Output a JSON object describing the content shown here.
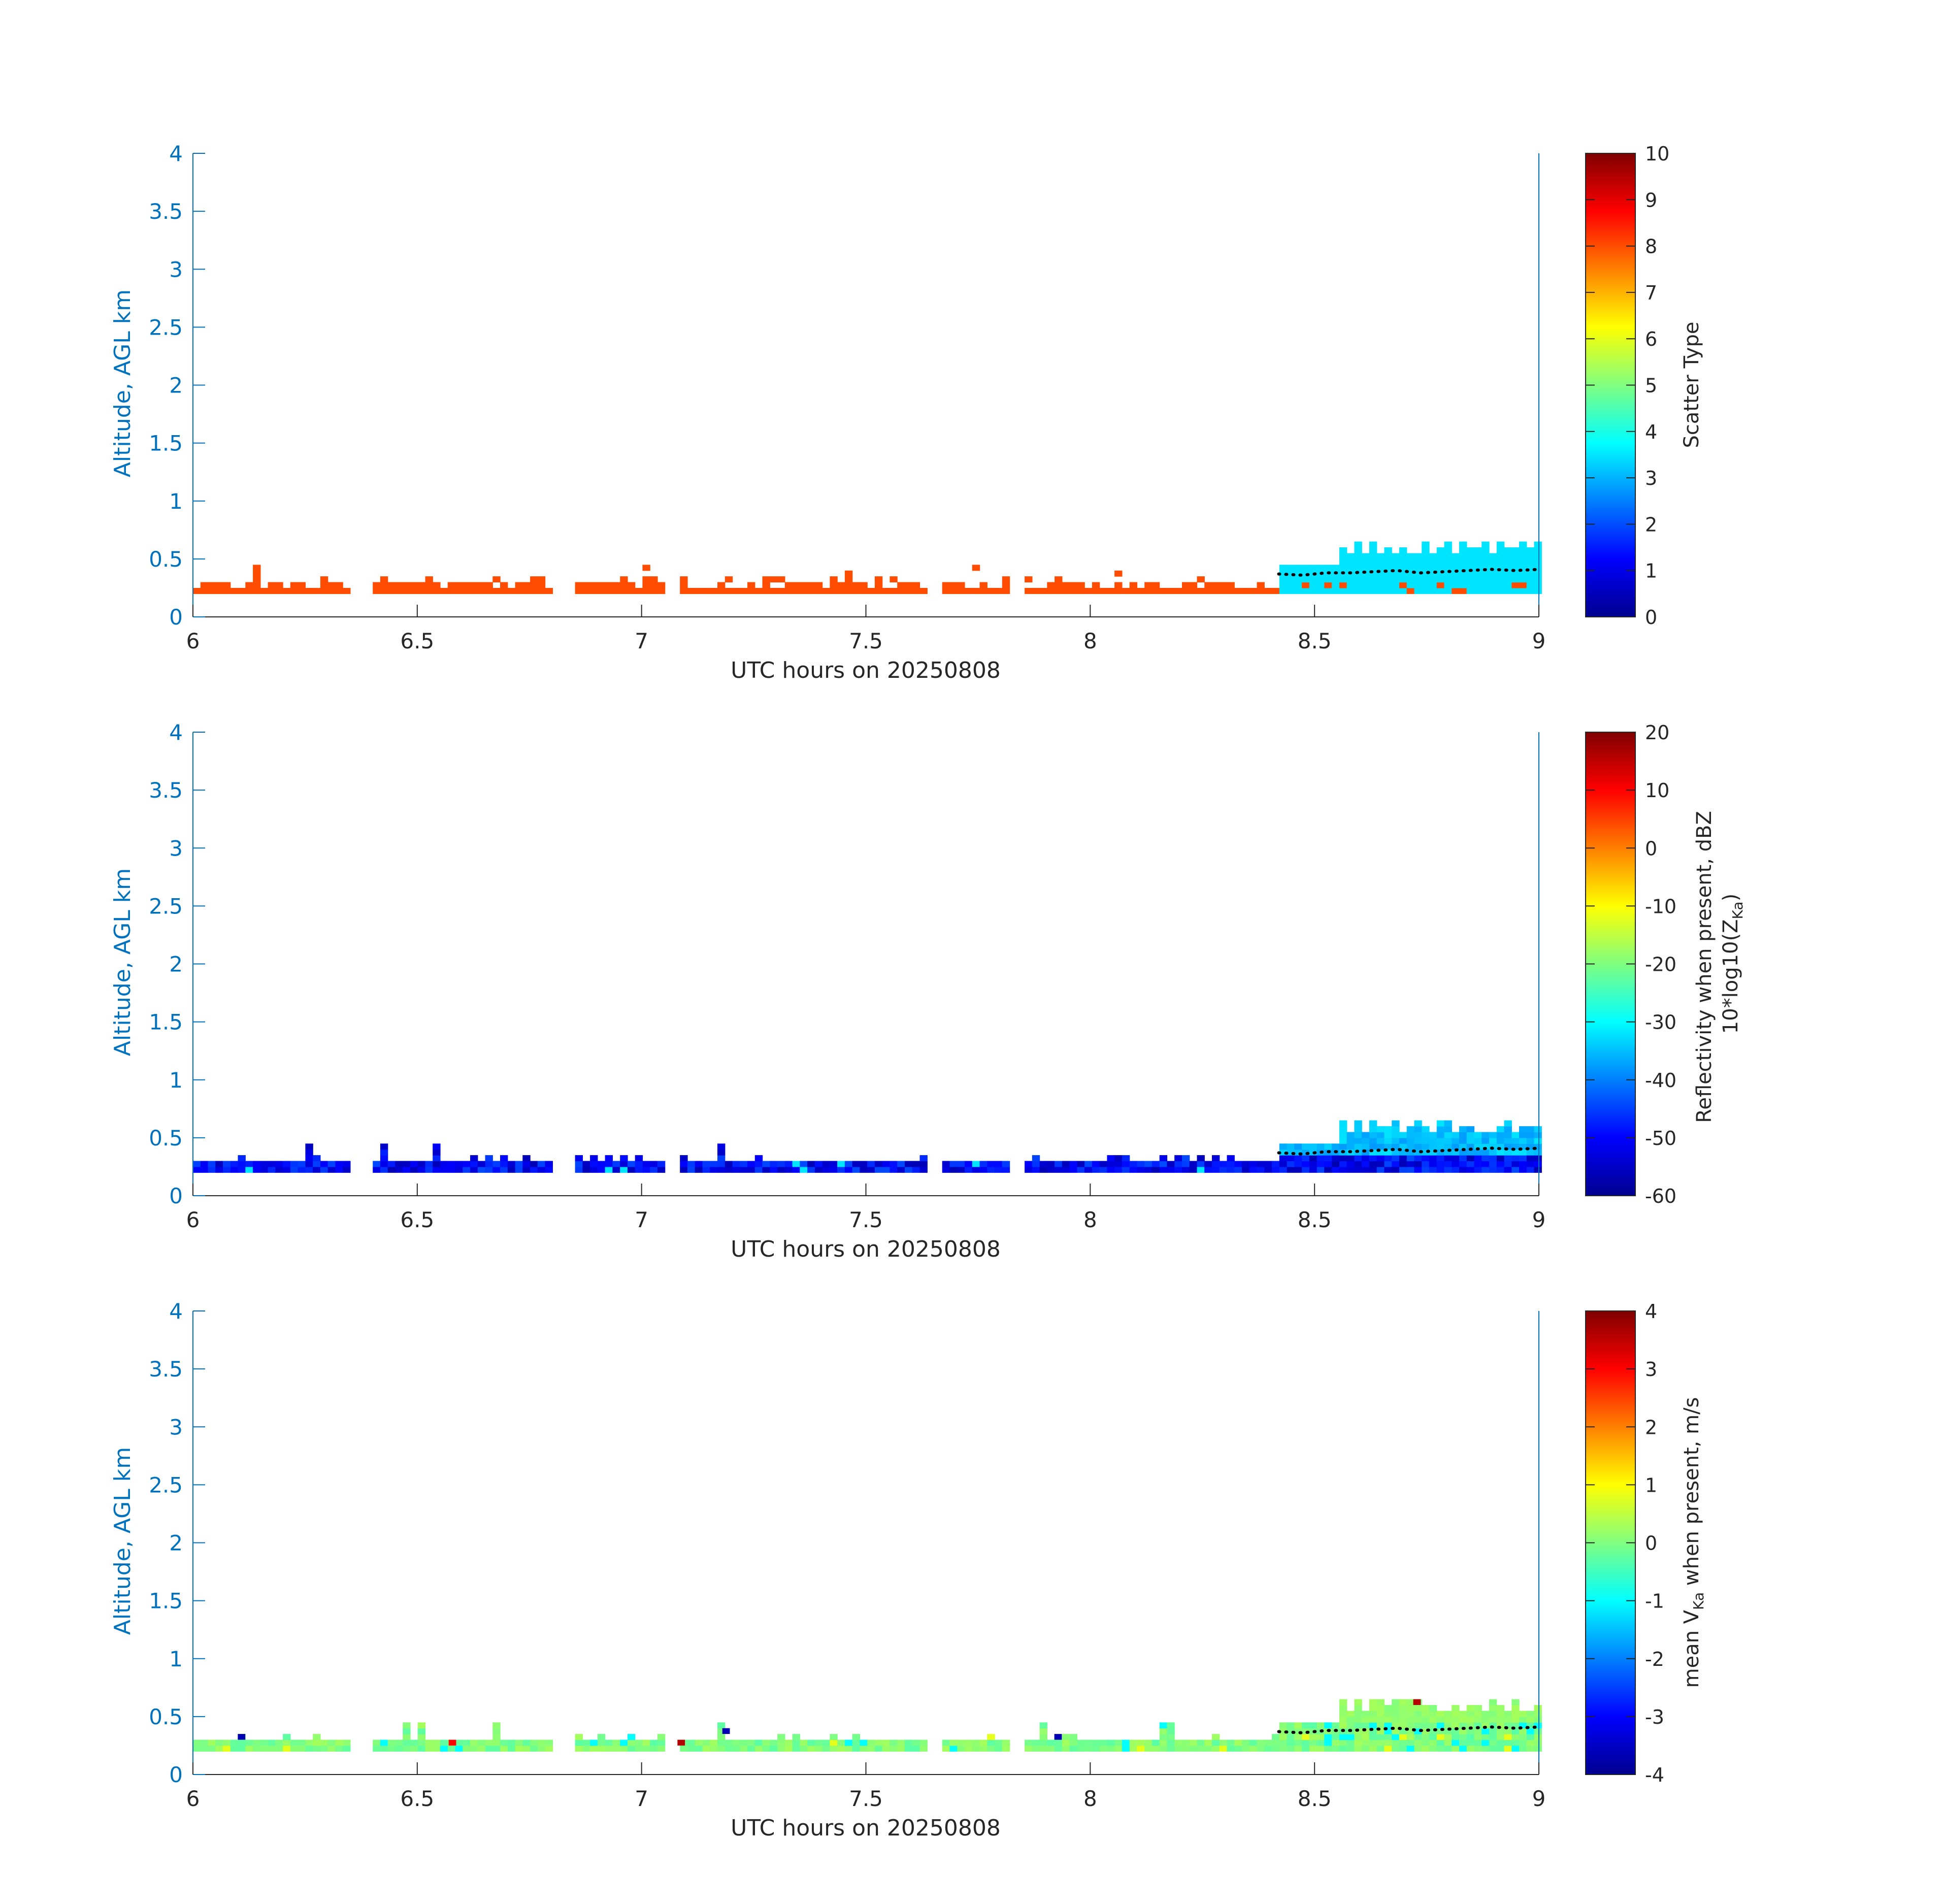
{
  "chart_data": [
    {
      "type": "heatmap",
      "variable": "scatter_type",
      "xlabel": "UTC hours on 20250808",
      "ylabel": "Altitude, AGL km",
      "xlim": [
        6,
        9
      ],
      "ylim": [
        0,
        4
      ],
      "xticks": [
        "6",
        "6.5",
        "7",
        "7.5",
        "8",
        "8.5",
        "9"
      ],
      "yticks": [
        "0",
        "0.5",
        "1",
        "1.5",
        "2",
        "2.5",
        "3",
        "3.5",
        "4"
      ],
      "colorbar": {
        "label": "Scatter Type",
        "range": [
          0,
          10
        ],
        "ticks": [
          "0",
          "1",
          "2",
          "3",
          "4",
          "5",
          "6",
          "7",
          "8",
          "9",
          "10"
        ],
        "colormap": "jet"
      },
      "layer_data": {
        "description_values": "orange cells (scatter type ~8) at 0.2-0.35 km from 6.0 to 8.42 h; cyan cells (scatter type ~3.5) from 8.42 to 9.0 h reaching 0.45-0.65 km",
        "low_layer_value": 8,
        "upper_layer_value": 3.5,
        "layer_base_km": 0.2,
        "transition_hour": 8.42
      },
      "overlay_line": {
        "style": "black dotted",
        "x_range": [
          8.42,
          9.0
        ],
        "y_values_km": [
          0.37,
          0.36,
          0.38,
          0.38,
          0.39,
          0.4,
          0.38,
          0.39,
          0.4,
          0.41,
          0.4,
          0.41
        ]
      }
    },
    {
      "type": "heatmap",
      "variable": "reflectivity",
      "xlabel": "UTC hours on 20250808",
      "ylabel": "Altitude, AGL km",
      "xlim": [
        6,
        9
      ],
      "ylim": [
        0,
        4
      ],
      "xticks": [
        "6",
        "6.5",
        "7",
        "7.5",
        "8",
        "8.5",
        "9"
      ],
      "yticks": [
        "0",
        "0.5",
        "1",
        "1.5",
        "2",
        "2.5",
        "3",
        "3.5",
        "4"
      ],
      "colorbar": {
        "label_line1": "Reflectivity when present, dBZ",
        "label_line2_prefix": "10*log10(Z",
        "label_line2_sub": "Ka",
        "label_line2_suffix": ")",
        "range": [
          -60,
          20
        ],
        "ticks": [
          "-60",
          "-50",
          "-40",
          "-30",
          "-20",
          "-10",
          "0",
          "10",
          "20"
        ],
        "colormap": "jet"
      },
      "layer_data": {
        "description_values": "mostly -55 to -45 dBZ in the 0.2-0.35 km layer from 6.0-8.4 h; -40 to -30 dBZ above 0.35 km after 8.42 h, up to 0.7 km",
        "typical_low_dbz": -50,
        "typical_upper_dbz": -35
      },
      "overlay_line": {
        "style": "black dotted",
        "x_range": [
          8.42,
          9.0
        ],
        "y_values_km": [
          0.37,
          0.36,
          0.38,
          0.38,
          0.39,
          0.4,
          0.38,
          0.39,
          0.4,
          0.41,
          0.4,
          0.41
        ]
      }
    },
    {
      "type": "heatmap",
      "variable": "mean_doppler_velocity",
      "xlabel": "UTC hours on 20250808",
      "ylabel": "Altitude, AGL km",
      "xlim": [
        6,
        9
      ],
      "ylim": [
        0,
        4
      ],
      "xticks": [
        "6",
        "6.5",
        "7",
        "7.5",
        "8",
        "8.5",
        "9"
      ],
      "yticks": [
        "0",
        "0.5",
        "1",
        "1.5",
        "2",
        "2.5",
        "3",
        "3.5",
        "4"
      ],
      "colorbar": {
        "label_prefix": "mean V",
        "label_sub": "Ka",
        "label_suffix": " when present, m/s",
        "range": [
          -4,
          4
        ],
        "ticks": [
          "-4",
          "-3",
          "-2",
          "-1",
          "0",
          "1",
          "2",
          "3",
          "4"
        ],
        "colormap": "jet"
      },
      "layer_data": {
        "description_values": "mostly near 0 m/s (green) with occasional -1 (cyan) and isolated extremes (+3.5 red, -3.5 navy)",
        "typical_velocity": 0
      },
      "overlay_line": {
        "style": "black dotted",
        "x_range": [
          8.42,
          9.0
        ],
        "y_values_km": [
          0.37,
          0.36,
          0.38,
          0.38,
          0.39,
          0.4,
          0.38,
          0.39,
          0.4,
          0.41,
          0.4,
          0.41
        ]
      }
    }
  ],
  "colors": {
    "axis_blue": "#0072BD",
    "text_dark": "#262626",
    "scatter_low": "#FF4000",
    "scatter_high": "#20FFE0"
  }
}
